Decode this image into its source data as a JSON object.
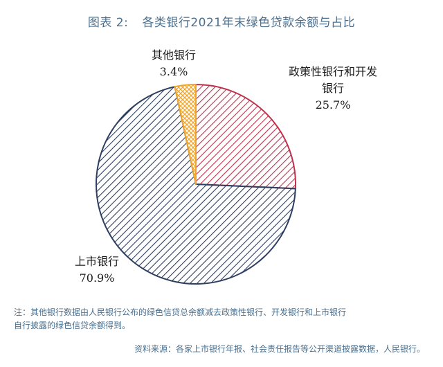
{
  "title": {
    "number": "图表 2:",
    "text": "各类银行2021年末绿色贷款余额与占比"
  },
  "chart_data": {
    "type": "pie",
    "title": "各类银行2021年末绿色贷款余额与占比",
    "slices": [
      {
        "label": "政策性银行和开发银行",
        "label_lines": [
          "政策性银行和开发",
          "银行"
        ],
        "value": 25.7,
        "value_text": "25.7%",
        "color": "#c0314b"
      },
      {
        "label": "上市银行",
        "label_lines": [
          "上市银行"
        ],
        "value": 70.9,
        "value_text": "70.9%",
        "color": "#2f3f60"
      },
      {
        "label": "其他银行",
        "label_lines": [
          "其他银行"
        ],
        "value": 3.4,
        "value_text": "3.4%",
        "color": "#f0a52c"
      }
    ]
  },
  "note": {
    "line1": "注：其他银行数据由人民银行公布的绿色信贷总余额减去政策性银行、开发银行和上市银行",
    "line2": "自行披露的绿色信贷余额得到。"
  },
  "source": "资料来源：各家上市银行年报、社会责任报告等公开渠道披露数据，人民银行。"
}
